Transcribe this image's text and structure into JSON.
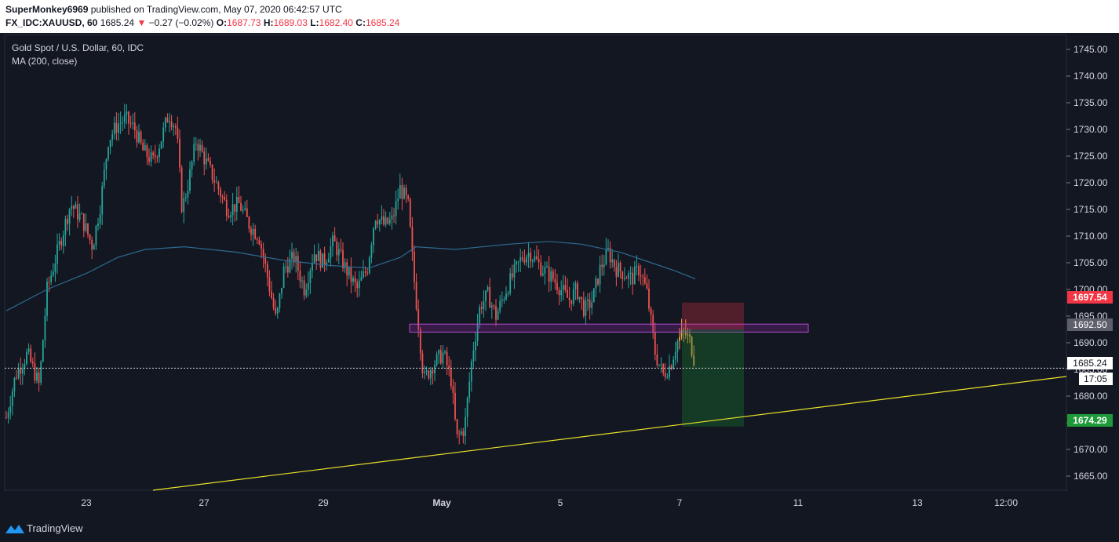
{
  "header": {
    "author": "SuperMonkey6969",
    "published_text": "published on TradingView.com, May 07, 2020 06:42:57 UTC",
    "symbol": "FX_IDC:XAUUSD, 60",
    "last": "1685.24",
    "change": "−0.27 (−0.02%)",
    "o_label": "O:",
    "o_value": "1687.73",
    "h_label": "H:",
    "h_value": "1689.03",
    "l_label": "L:",
    "l_value": "1682.40",
    "c_label": "C:",
    "c_value": "1685.24"
  },
  "legend": {
    "title": "Gold Spot / U.S. Dollar, 60, IDC",
    "indicator": "MA (200, close)"
  },
  "footer": {
    "brand": "TradingView"
  },
  "colors": {
    "background": "#131722",
    "up": "#26a69a",
    "down": "#ef5350",
    "ma": "#2e6a8f",
    "trendline": "#e8e22a",
    "zone": "#9c27b0",
    "stop": "#f23645",
    "target": "#1b7a2e"
  },
  "price_axis": {
    "ticks": [
      "1745.00",
      "1740.00",
      "1735.00",
      "1730.00",
      "1725.00",
      "1720.00",
      "1715.00",
      "1710.00",
      "1705.00",
      "1700.00",
      "1695.00",
      "1690.00",
      "1685.00",
      "1680.00",
      "1675.00",
      "1670.00",
      "1665.00"
    ],
    "tags": {
      "stop": "1697.54",
      "entry": "1692.50",
      "current": "1685.24",
      "countdown": "17:05",
      "target": "1674.29"
    }
  },
  "time_axis": {
    "ticks": [
      "23",
      "27",
      "29",
      "May",
      "5",
      "7",
      "11",
      "13",
      "12:00"
    ]
  },
  "chart_data": {
    "type": "candlestick",
    "symbol": "XAUUSD",
    "timeframe": "60",
    "ylim": [
      1661,
      1749
    ],
    "last_price": 1685.24,
    "ma_200": [
      {
        "x": "Apr 21",
        "y": 1696
      },
      {
        "x": "Apr 22",
        "y": 1700
      },
      {
        "x": "Apr 23",
        "y": 1704
      },
      {
        "x": "Apr 24",
        "y": 1707
      },
      {
        "x": "Apr 25",
        "y": 1708
      },
      {
        "x": "Apr 27",
        "y": 1708
      },
      {
        "x": "Apr 28",
        "y": 1707
      },
      {
        "x": "Apr 29",
        "y": 1705
      },
      {
        "x": "Apr 30",
        "y": 1704
      },
      {
        "x": "May 1",
        "y": 1707
      },
      {
        "x": "May 3",
        "y": 1707
      },
      {
        "x": "May 4",
        "y": 1708
      },
      {
        "x": "May 5",
        "y": 1709
      },
      {
        "x": "May 6",
        "y": 1708
      },
      {
        "x": "May 7",
        "y": 1702
      }
    ],
    "support_zone": [
      1692.0,
      1693.5
    ],
    "short_position": {
      "stop": 1697.54,
      "entry": 1692.5,
      "target": 1674.29
    },
    "trendline": [
      {
        "x": "Apr 25",
        "y": 1661
      },
      {
        "x": "May 14",
        "y": 1682
      }
    ]
  }
}
